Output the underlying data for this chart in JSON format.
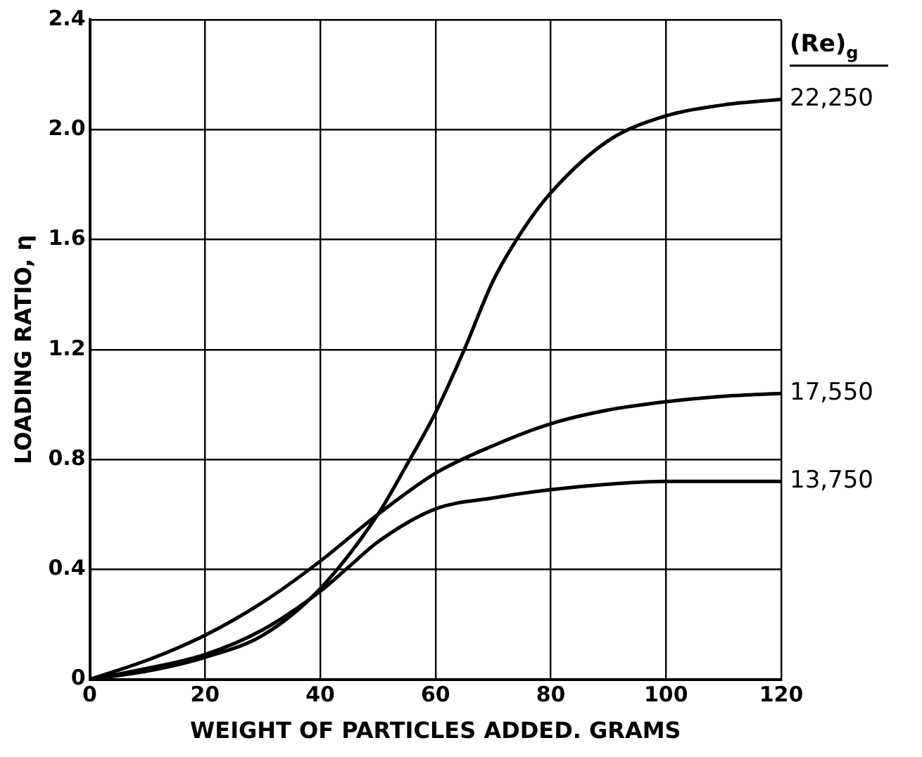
{
  "chart_data": {
    "type": "line",
    "xlabel": "WEIGHT OF PARTICLES ADDED. GRAMS",
    "ylabel": "LOADING RATIO, η",
    "legend_title": "(Re)$_{g}$",
    "xlim": [
      0,
      120
    ],
    "xticks": [
      0,
      20,
      40,
      60,
      80,
      100,
      120
    ],
    "ylim": [
      0,
      2.4
    ],
    "yticks": [
      0,
      {
        "value": 0.4,
        "label": "0.4"
      },
      {
        "value": 0.8,
        "label": "0.8"
      },
      1.2,
      1.6,
      {
        "value": 2,
        "label": "2.0"
      },
      2.4
    ],
    "grid": true,
    "legend": "right",
    "marker": "none",
    "line_style": "solid",
    "series": [
      {
        "name": "22,250",
        "color": "#000000",
        "x": [
          0,
          10,
          20,
          30,
          40,
          50,
          55,
          60,
          65,
          70,
          75,
          80,
          90,
          100,
          110,
          120
        ],
        "values": [
          0,
          0.03,
          0.08,
          0.16,
          0.33,
          0.6,
          0.78,
          0.97,
          1.2,
          1.45,
          1.63,
          1.77,
          1.96,
          2.05,
          2.09,
          2.11
        ]
      },
      {
        "name": "17,550",
        "color": "#000000",
        "x": [
          0,
          10,
          20,
          30,
          40,
          50,
          60,
          70,
          80,
          90,
          100,
          110,
          120
        ],
        "values": [
          0,
          0.07,
          0.16,
          0.28,
          0.43,
          0.6,
          0.75,
          0.85,
          0.93,
          0.98,
          1.01,
          1.03,
          1.04
        ]
      },
      {
        "name": "13,750",
        "color": "#000000",
        "x": [
          0,
          10,
          20,
          30,
          40,
          45,
          50,
          60,
          70,
          80,
          90,
          100,
          110,
          120
        ],
        "values": [
          0,
          0.04,
          0.09,
          0.18,
          0.32,
          0.41,
          0.5,
          0.62,
          0.66,
          0.69,
          0.71,
          0.72,
          0.72,
          0.72
        ]
      }
    ]
  }
}
